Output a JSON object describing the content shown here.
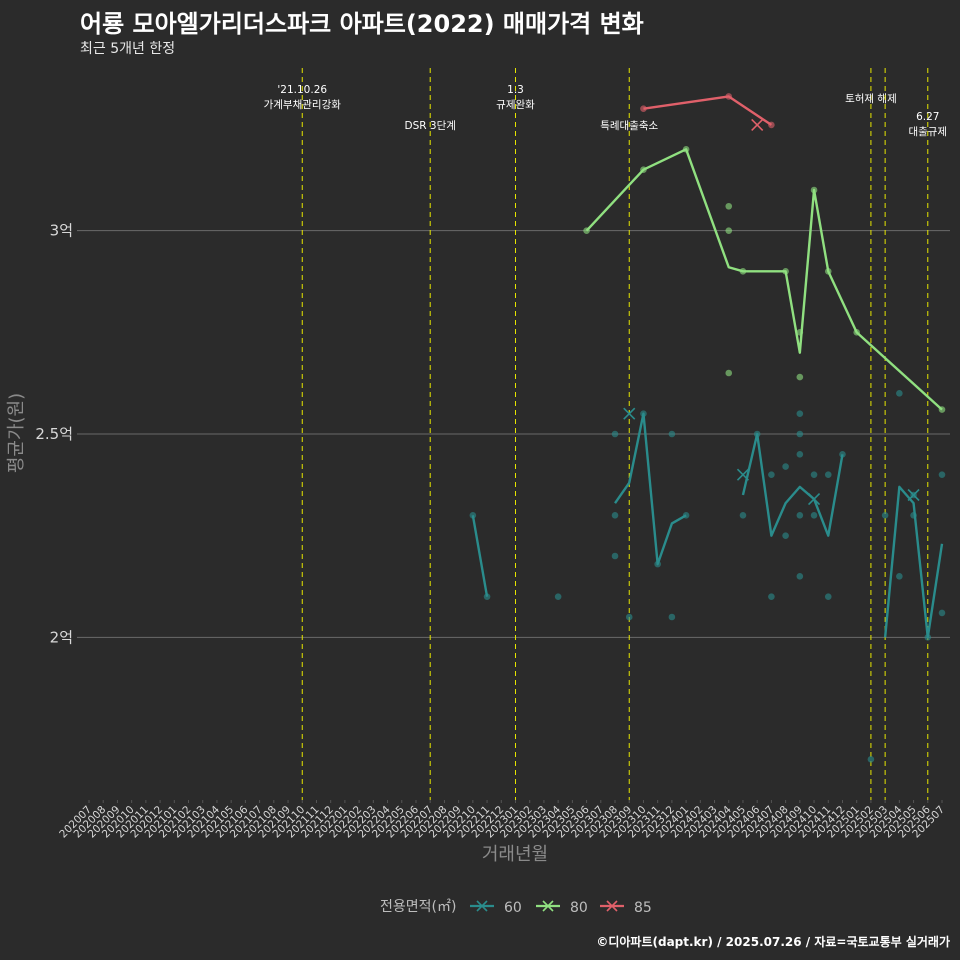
{
  "title": "어룡 모아엘가리더스파크 아파트(2022) 매매가격 변화",
  "subtitle": "최근 5개년 한정",
  "caption": "©디아파트(dapt.kr) / 2025.07.26 / 자료=국토교통부 실거래가",
  "chart_data": {
    "type": "line",
    "xlabel": "거래년월",
    "ylabel": "평균가(원)",
    "ylim": [
      1.6,
      3.4
    ],
    "y_ticks": [
      {
        "value": 2.0,
        "label": "2억"
      },
      {
        "value": 2.5,
        "label": "2.5억"
      },
      {
        "value": 3.0,
        "label": "3억"
      }
    ],
    "categories": [
      "202007",
      "202008",
      "202009",
      "202010",
      "202011",
      "202012",
      "202101",
      "202102",
      "202103",
      "202104",
      "202105",
      "202106",
      "202107",
      "202108",
      "202109",
      "202110",
      "202111",
      "202112",
      "202201",
      "202202",
      "202203",
      "202204",
      "202205",
      "202206",
      "202207",
      "202208",
      "202209",
      "202210",
      "202211",
      "202212",
      "202301",
      "202302",
      "202303",
      "202304",
      "202305",
      "202306",
      "202307",
      "202308",
      "202309",
      "202310",
      "202311",
      "202312",
      "202401",
      "202402",
      "202403",
      "202404",
      "202405",
      "202406",
      "202407",
      "202408",
      "202409",
      "202410",
      "202411",
      "202412",
      "202501",
      "202502",
      "202503",
      "202504",
      "202505",
      "202506",
      "202507"
    ],
    "events": [
      {
        "month": "202110",
        "lines": [
          "'21.10.26",
          "가계부채관리강화"
        ],
        "level": 1
      },
      {
        "month": "202207",
        "lines": [
          "DSR 3단계"
        ],
        "level": 3
      },
      {
        "month": "202301",
        "lines": [
          "1.3",
          "규제완화"
        ],
        "level": 1
      },
      {
        "month": "202309",
        "lines": [
          "특례대출축소"
        ],
        "level": 3
      },
      {
        "month": "202502",
        "lines": [
          "토허제 해제"
        ],
        "level": 2
      },
      {
        "month": "202503",
        "lines": [],
        "level": 0
      },
      {
        "month": "202506",
        "lines": [
          "6.27",
          "대출규제"
        ],
        "level": 4
      }
    ],
    "series": [
      {
        "name": "60",
        "color": "#2a8c8c",
        "line": [
          [
            "202210",
            2.3
          ],
          [
            "202211",
            2.1
          ],
          null,
          [
            "202308",
            2.33
          ],
          [
            "202309",
            2.38
          ],
          [
            "202310",
            2.55
          ],
          [
            "202311",
            2.18
          ],
          [
            "202312",
            2.28
          ],
          [
            "202401",
            2.3
          ],
          null,
          [
            "202405",
            2.35
          ],
          [
            "202406",
            2.5
          ],
          [
            "202407",
            2.25
          ],
          [
            "202408",
            2.33
          ],
          [
            "202409",
            2.37
          ],
          [
            "202410",
            2.34
          ],
          [
            "202411",
            2.25
          ],
          [
            "202412",
            2.45
          ],
          null,
          [
            "202503",
            2.0
          ],
          [
            "202504",
            2.37
          ],
          [
            "202505",
            2.33
          ],
          [
            "202506",
            2.0
          ],
          [
            "202507",
            2.23
          ]
        ],
        "points": [
          [
            "202210",
            2.3
          ],
          [
            "202211",
            2.1
          ],
          [
            "202304",
            2.1
          ],
          [
            "202308",
            2.5
          ],
          [
            "202308",
            2.3
          ],
          [
            "202308",
            2.2
          ],
          [
            "202309",
            2.05
          ],
          [
            "202310",
            2.55
          ],
          [
            "202311",
            2.18
          ],
          [
            "202312",
            2.5
          ],
          [
            "202312",
            2.05
          ],
          [
            "202401",
            2.3
          ],
          [
            "202405",
            2.3
          ],
          [
            "202406",
            2.5
          ],
          [
            "202407",
            2.4
          ],
          [
            "202407",
            2.1
          ],
          [
            "202408",
            2.42
          ],
          [
            "202408",
            2.25
          ],
          [
            "202409",
            2.55
          ],
          [
            "202409",
            2.5
          ],
          [
            "202409",
            2.45
          ],
          [
            "202409",
            2.3
          ],
          [
            "202409",
            2.15
          ],
          [
            "202410",
            2.4
          ],
          [
            "202410",
            2.3
          ],
          [
            "202411",
            2.4
          ],
          [
            "202411",
            2.1
          ],
          [
            "202412",
            2.45
          ],
          [
            "202502",
            1.7
          ],
          [
            "202503",
            2.3
          ],
          [
            "202504",
            2.6
          ],
          [
            "202504",
            2.15
          ],
          [
            "202505",
            2.35
          ],
          [
            "202505",
            2.3
          ],
          [
            "202506",
            2.0
          ],
          [
            "202507",
            2.4
          ],
          [
            "202507",
            2.06
          ]
        ],
        "crosses": [
          [
            "202309",
            2.55
          ],
          [
            "202405",
            2.4
          ],
          [
            "202410",
            2.34
          ],
          [
            "202505",
            2.35
          ]
        ]
      },
      {
        "name": "80",
        "color": "#90e080",
        "line": [
          [
            "202306",
            3.0
          ],
          [
            "202310",
            3.15
          ],
          [
            "202401",
            3.2
          ],
          [
            "202404",
            2.91
          ],
          [
            "202405",
            2.9
          ],
          [
            "202408",
            2.9
          ],
          [
            "202409",
            2.7
          ],
          [
            "202410",
            3.1
          ],
          [
            "202411",
            2.9
          ],
          [
            "202501",
            2.75
          ],
          [
            "202507",
            2.56
          ]
        ],
        "points": [
          [
            "202306",
            3.0
          ],
          [
            "202310",
            3.15
          ],
          [
            "202401",
            3.2
          ],
          [
            "202404",
            3.06
          ],
          [
            "202404",
            3.0
          ],
          [
            "202404",
            2.65
          ],
          [
            "202405",
            2.9
          ],
          [
            "202408",
            2.9
          ],
          [
            "202409",
            2.75
          ],
          [
            "202409",
            2.64
          ],
          [
            "202410",
            3.1
          ],
          [
            "202411",
            2.9
          ],
          [
            "202501",
            2.75
          ],
          [
            "202507",
            2.56
          ]
        ],
        "crosses": []
      },
      {
        "name": "85",
        "color": "#e0606a",
        "line": [
          [
            "202310",
            3.3
          ],
          [
            "202404",
            3.33
          ],
          [
            "202407",
            3.26
          ]
        ],
        "points": [
          [
            "202310",
            3.3
          ],
          [
            "202404",
            3.33
          ],
          [
            "202407",
            3.26
          ]
        ],
        "crosses": [
          [
            "202406",
            3.26
          ]
        ]
      }
    ],
    "legend": {
      "title": "전용면적(㎡)",
      "position": "bottom"
    }
  }
}
